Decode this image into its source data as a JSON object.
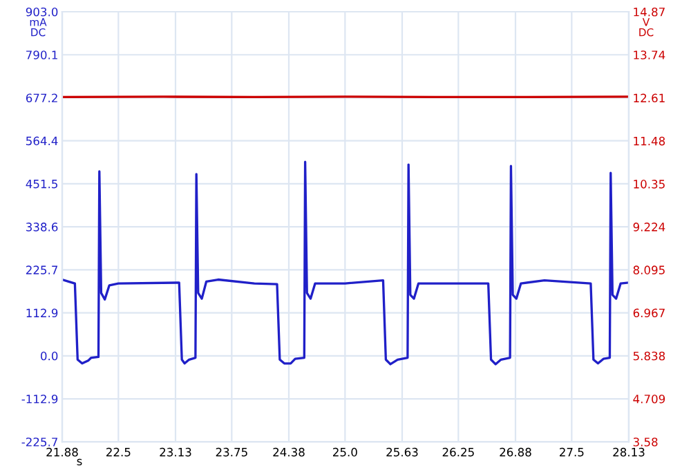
{
  "chart_data": {
    "type": "line",
    "xlabel": "s",
    "ylabel": "mA\nDC",
    "y2label": "V\nDC",
    "xlim": [
      21.88,
      28.13
    ],
    "xticks": [
      21.88,
      22.5,
      23.13,
      23.75,
      24.38,
      {
        "value": 25.0,
        "label": "25.0"
      },
      25.63,
      26.25,
      26.88,
      27.5,
      28.13
    ],
    "ylim": [
      -225.7,
      903.0
    ],
    "yticks": [
      -225.7,
      -112.9,
      {
        "value": 0,
        "label": "0.0"
      },
      112.9,
      225.7,
      338.6,
      451.5,
      564.4,
      677.2,
      790.1,
      {
        "value": 903.0,
        "label": "903.0"
      }
    ],
    "y2lim": [
      3.58,
      14.87
    ],
    "y2ticks": [
      3.58,
      4.709,
      5.838,
      6.967,
      8.095,
      9.224,
      10.35,
      11.48,
      12.61,
      13.74,
      14.87
    ],
    "grid": true,
    "legend": false,
    "line_style": "solid",
    "marker": "none",
    "series": [
      {
        "color": "#2020c8",
        "x": [
          21.88,
          21.95,
          22.02,
          22.05,
          22.1,
          22.17,
          22.2,
          22.28,
          22.29,
          22.31,
          22.35,
          22.4,
          22.5,
          23.17,
          23.2,
          23.23,
          23.28,
          23.35,
          23.36,
          23.38,
          23.42,
          23.47,
          23.6,
          24.0,
          24.25,
          24.28,
          24.33,
          24.4,
          24.45,
          24.55,
          24.56,
          24.58,
          24.62,
          24.67,
          25.0,
          25.42,
          25.45,
          25.5,
          25.58,
          25.69,
          25.7,
          25.72,
          25.76,
          25.81,
          26.3,
          26.58,
          26.61,
          26.66,
          26.72,
          26.82,
          26.83,
          26.85,
          26.89,
          26.94,
          27.2,
          27.71,
          27.74,
          27.79,
          27.85,
          27.92,
          27.93,
          27.95,
          27.99,
          28.04,
          28.12
        ],
        "values": [
          200,
          195,
          190,
          -10,
          -20,
          -12,
          -5,
          -3,
          484,
          165,
          148,
          185,
          190,
          192,
          -10,
          -20,
          -10,
          -5,
          477,
          165,
          150,
          195,
          200,
          190,
          188,
          -10,
          -20,
          -20,
          -8,
          -5,
          509,
          165,
          150,
          190,
          190,
          198,
          -10,
          -22,
          -10,
          -5,
          502,
          160,
          150,
          190,
          190,
          190,
          -10,
          -22,
          -10,
          -5,
          498,
          160,
          150,
          190,
          198,
          190,
          -10,
          -20,
          -8,
          -5,
          480,
          160,
          150,
          190,
          192
        ]
      },
      {
        "color": "#cc0000",
        "axis": "y2",
        "x": [
          21.88,
          23.0,
          24.0,
          25.0,
          26.0,
          27.0,
          28.13
        ],
        "values": [
          12.63,
          12.64,
          12.63,
          12.64,
          12.63,
          12.63,
          12.64
        ]
      }
    ]
  }
}
